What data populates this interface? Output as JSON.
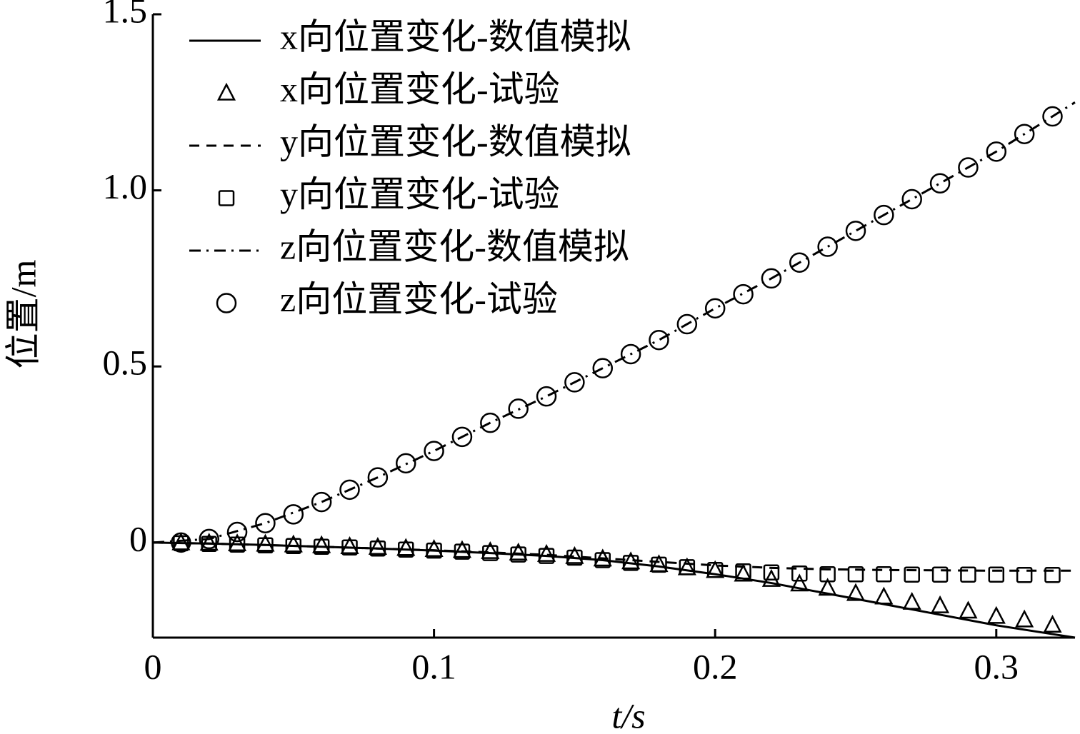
{
  "chart_data": {
    "type": "line",
    "xlabel": "t/s",
    "ylabel": "位置/m",
    "xlim": [
      0,
      0.328
    ],
    "ylim": [
      -0.27,
      1.5
    ],
    "xticks": [
      0,
      0.1,
      0.2,
      0.3
    ],
    "yticks": [
      0,
      0.5,
      {
        "value": 1,
        "label": "1.0"
      },
      1.5
    ],
    "legend": "top-left",
    "series": [
      {
        "name": "x向位置变化-数值模拟",
        "color": "#000000",
        "kind": "line",
        "dash": "solid",
        "x": [
          0,
          0.02,
          0.04,
          0.06,
          0.08,
          0.1,
          0.12,
          0.14,
          0.16,
          0.18,
          0.2,
          0.22,
          0.24,
          0.26,
          0.28,
          0.3,
          0.32,
          0.328
        ],
        "values": [
          0,
          -0.003,
          -0.007,
          -0.012,
          -0.017,
          -0.023,
          -0.03,
          -0.038,
          -0.05,
          -0.068,
          -0.09,
          -0.115,
          -0.145,
          -0.175,
          -0.205,
          -0.235,
          -0.26,
          -0.27
        ]
      },
      {
        "name": "x向位置变化-试验",
        "color": "#000000",
        "kind": "scatter",
        "marker": "triangle",
        "x": [
          0.01,
          0.02,
          0.03,
          0.04,
          0.05,
          0.06,
          0.07,
          0.08,
          0.09,
          0.1,
          0.11,
          0.12,
          0.13,
          0.14,
          0.15,
          0.16,
          0.17,
          0.18,
          0.19,
          0.2,
          0.21,
          0.22,
          0.23,
          0.24,
          0.25,
          0.26,
          0.27,
          0.28,
          0.29,
          0.3,
          0.31,
          0.32
        ],
        "values": [
          -0.001,
          -0.002,
          -0.004,
          -0.005,
          -0.007,
          -0.009,
          -0.012,
          -0.014,
          -0.017,
          -0.02,
          -0.023,
          -0.026,
          -0.03,
          -0.034,
          -0.04,
          -0.047,
          -0.055,
          -0.063,
          -0.072,
          -0.08,
          -0.09,
          -0.105,
          -0.118,
          -0.13,
          -0.145,
          -0.155,
          -0.17,
          -0.18,
          -0.195,
          -0.21,
          -0.22,
          -0.235
        ]
      },
      {
        "name": "y向位置变化-数值模拟",
        "color": "#000000",
        "kind": "line",
        "dash": "dashed",
        "x": [
          0,
          0.02,
          0.04,
          0.06,
          0.08,
          0.1,
          0.12,
          0.14,
          0.16,
          0.18,
          0.2,
          0.22,
          0.24,
          0.26,
          0.28,
          0.3,
          0.32,
          0.328
        ],
        "values": [
          0,
          -0.003,
          -0.007,
          -0.012,
          -0.017,
          -0.022,
          -0.028,
          -0.035,
          -0.045,
          -0.055,
          -0.065,
          -0.072,
          -0.076,
          -0.078,
          -0.079,
          -0.08,
          -0.08,
          -0.08
        ]
      },
      {
        "name": "y向位置变化-试验",
        "color": "#000000",
        "kind": "scatter",
        "marker": "square",
        "x": [
          0.01,
          0.02,
          0.03,
          0.04,
          0.05,
          0.06,
          0.07,
          0.08,
          0.09,
          0.1,
          0.11,
          0.12,
          0.13,
          0.14,
          0.15,
          0.16,
          0.17,
          0.18,
          0.19,
          0.2,
          0.21,
          0.22,
          0.23,
          0.24,
          0.25,
          0.26,
          0.27,
          0.28,
          0.29,
          0.3,
          0.31,
          0.32
        ],
        "values": [
          -0.002,
          -0.004,
          -0.006,
          -0.008,
          -0.01,
          -0.012,
          -0.014,
          -0.017,
          -0.02,
          -0.023,
          -0.026,
          -0.03,
          -0.034,
          -0.038,
          -0.043,
          -0.05,
          -0.058,
          -0.063,
          -0.07,
          -0.078,
          -0.082,
          -0.085,
          -0.088,
          -0.09,
          -0.09,
          -0.09,
          -0.091,
          -0.091,
          -0.091,
          -0.091,
          -0.092,
          -0.092
        ]
      },
      {
        "name": "z向位置变化-数值模拟",
        "color": "#000000",
        "kind": "line",
        "dash": "dashdot",
        "x": [
          0,
          0.02,
          0.04,
          0.06,
          0.08,
          0.1,
          0.12,
          0.14,
          0.16,
          0.18,
          0.2,
          0.22,
          0.24,
          0.26,
          0.28,
          0.3,
          0.32,
          0.328
        ],
        "values": [
          0,
          0.01,
          0.055,
          0.115,
          0.185,
          0.26,
          0.34,
          0.415,
          0.495,
          0.575,
          0.665,
          0.75,
          0.84,
          0.93,
          1.02,
          1.11,
          1.21,
          1.25
        ]
      },
      {
        "name": "z向位置变化-试验",
        "color": "#000000",
        "kind": "scatter",
        "marker": "circle",
        "x": [
          0.01,
          0.02,
          0.03,
          0.04,
          0.05,
          0.06,
          0.07,
          0.08,
          0.09,
          0.1,
          0.11,
          0.12,
          0.13,
          0.14,
          0.15,
          0.16,
          0.17,
          0.18,
          0.19,
          0.2,
          0.21,
          0.22,
          0.23,
          0.24,
          0.25,
          0.26,
          0.27,
          0.28,
          0.29,
          0.3,
          0.31,
          0.32
        ],
        "values": [
          0,
          0.01,
          0.03,
          0.055,
          0.08,
          0.115,
          0.15,
          0.185,
          0.225,
          0.26,
          0.3,
          0.34,
          0.38,
          0.415,
          0.455,
          0.495,
          0.535,
          0.575,
          0.62,
          0.665,
          0.705,
          0.75,
          0.795,
          0.84,
          0.885,
          0.93,
          0.975,
          1.02,
          1.065,
          1.11,
          1.16,
          1.21
        ]
      }
    ]
  }
}
